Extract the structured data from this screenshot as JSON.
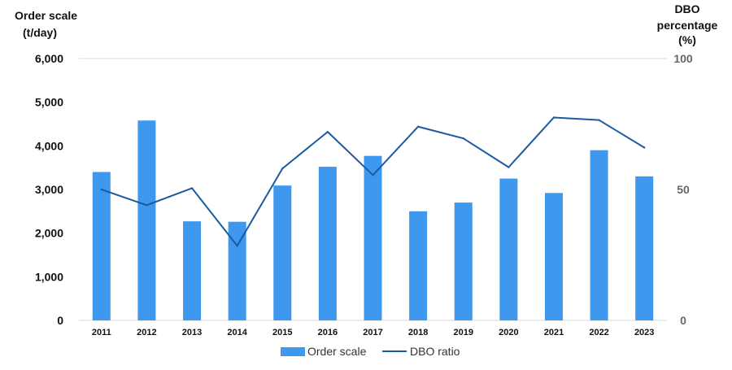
{
  "chart_data": {
    "type": "bar+line",
    "categories": [
      "2011",
      "2012",
      "2013",
      "2014",
      "2015",
      "2016",
      "2017",
      "2018",
      "2019",
      "2020",
      "2021",
      "2022",
      "2023"
    ],
    "series": [
      {
        "name": "Order scale",
        "type": "bar",
        "axis": "left",
        "color": "#3d98ee",
        "values": [
          3400,
          4580,
          2270,
          2260,
          3090,
          3520,
          3770,
          2500,
          2700,
          3250,
          2920,
          3900,
          3300
        ]
      },
      {
        "name": "DBO ratio",
        "type": "line",
        "axis": "right",
        "color": "#1c5aa0",
        "values": [
          50,
          44,
          50.5,
          28.5,
          58,
          72,
          55.5,
          74,
          69.5,
          58.5,
          77.5,
          76.5,
          66
        ]
      }
    ],
    "left_axis": {
      "label_line1": "Order scale",
      "label_line2": "(t/day)",
      "ylim": [
        0,
        6000
      ],
      "ticks": [
        "0",
        "1,000",
        "2,000",
        "3,000",
        "4,000",
        "5,000",
        "6,000"
      ],
      "tick_values": [
        0,
        1000,
        2000,
        3000,
        4000,
        5000,
        6000
      ]
    },
    "right_axis": {
      "label_line1": "DBO",
      "label_line2": "percentage",
      "label_line3": "(%)",
      "ylim": [
        0,
        100
      ],
      "ticks": [
        "0",
        "50",
        "100"
      ],
      "tick_values": [
        0,
        50,
        100
      ]
    },
    "grid": "horizontal-top-only",
    "legend": "bottom-center"
  }
}
